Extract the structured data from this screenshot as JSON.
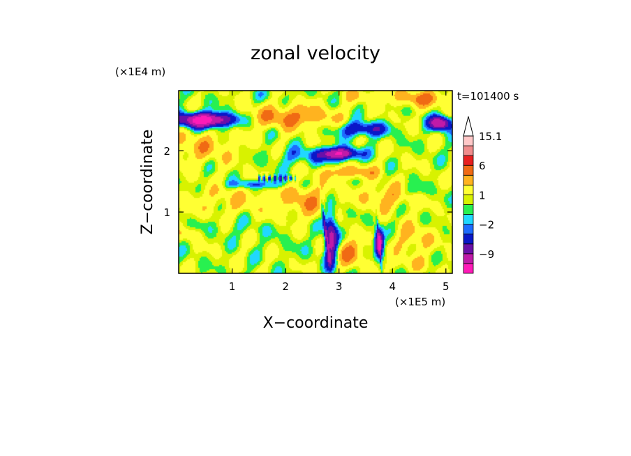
{
  "chart_data": {
    "type": "heatmap",
    "title": "zonal velocity",
    "xlabel": "X−coordinate",
    "ylabel": "Z−coordinate",
    "x_unit": "(×1E5 m)",
    "y_unit": "(×1E4 m)",
    "time_label": "t=101400 s",
    "xlim": [
      0,
      5.12
    ],
    "ylim": [
      0,
      2.98
    ],
    "x_ticks": [
      1,
      2,
      3,
      4,
      5
    ],
    "x_tick_labels": [
      "1",
      "2",
      "3",
      "4",
      "5"
    ],
    "y_ticks": [
      1,
      2
    ],
    "y_tick_labels": [
      "1",
      "2"
    ],
    "colorbar": {
      "levels": [
        -12,
        -9,
        -6,
        -4,
        -2,
        -1,
        0,
        1,
        2,
        4,
        6,
        9,
        12,
        15.1
      ],
      "labels": [
        {
          "value": 15.1,
          "text": "15.1"
        },
        {
          "value": 6,
          "text": "6"
        },
        {
          "value": 1,
          "text": "1"
        },
        {
          "value": -2,
          "text": "−2"
        },
        {
          "value": -9,
          "text": "−9"
        }
      ],
      "colors": [
        "#ff1ab8",
        "#c01aa8",
        "#6a10a8",
        "#0a18c8",
        "#1e6cff",
        "#20d8ff",
        "#28f050",
        "#d8f200",
        "#ffff33",
        "#ffb31f",
        "#f06a14",
        "#e82020",
        "#f08c8c",
        "#ffc8c8"
      ],
      "extend": "max"
    },
    "field_components": [
      {
        "x": 0.5,
        "z": 2.5,
        "sx": 0.55,
        "sz": 0.12,
        "amp": -13
      },
      {
        "x": 2.1,
        "z": 2.55,
        "sx": 0.8,
        "sz": 0.18,
        "amp": 5
      },
      {
        "x": 3.0,
        "z": 1.95,
        "sx": 0.35,
        "sz": 0.1,
        "amp": -11
      },
      {
        "x": 3.45,
        "z": 2.35,
        "sx": 0.45,
        "sz": 0.12,
        "amp": -6
      },
      {
        "x": 4.6,
        "z": 2.85,
        "sx": 0.6,
        "sz": 0.13,
        "amp": 4.5
      },
      {
        "x": 4.9,
        "z": 2.45,
        "sx": 0.2,
        "sz": 0.12,
        "amp": -11
      },
      {
        "x": 0.4,
        "z": 2.05,
        "sx": 0.7,
        "sz": 0.25,
        "amp": 3
      },
      {
        "x": 3.2,
        "z": 1.65,
        "sx": 0.5,
        "sz": 0.1,
        "amp": 4.5
      },
      {
        "x": 2.3,
        "z": 1.9,
        "sx": 0.55,
        "sz": 0.15,
        "amp": -2.5
      },
      {
        "x": 1.5,
        "z": 1.45,
        "sx": 0.6,
        "sz": 0.07,
        "amp": -4
      },
      {
        "x": 1.0,
        "z": 1.2,
        "sx": 1.0,
        "sz": 0.25,
        "amp": 2
      },
      {
        "x": 2.4,
        "z": 1.2,
        "sx": 0.45,
        "sz": 0.3,
        "amp": 3.5
      },
      {
        "x": 3.9,
        "z": 1.25,
        "sx": 0.5,
        "sz": 0.2,
        "amp": 3.5
      },
      {
        "x": 4.4,
        "z": 1.35,
        "sx": 0.3,
        "sz": 0.1,
        "amp": -2
      },
      {
        "x": 1.0,
        "z": 0.75,
        "sx": 1.1,
        "sz": 0.15,
        "amp": -0.8
      },
      {
        "x": 2.85,
        "z": 0.55,
        "sx": 0.12,
        "sz": 0.45,
        "amp": -9
      },
      {
        "x": 3.75,
        "z": 0.5,
        "sx": 0.08,
        "sz": 0.2,
        "amp": -12
      },
      {
        "x": 3.2,
        "z": 0.35,
        "sx": 0.25,
        "sz": 0.2,
        "amp": 5
      },
      {
        "x": 4.4,
        "z": 0.55,
        "sx": 0.35,
        "sz": 0.25,
        "amp": 3
      },
      {
        "x": 2.1,
        "z": 0.4,
        "sx": 0.5,
        "sz": 0.2,
        "amp": -0.5
      },
      {
        "x": 4.3,
        "z": 0.15,
        "sx": 0.6,
        "sz": 0.12,
        "amp": 1.5
      },
      {
        "x": 0.2,
        "z": 0.65,
        "sx": 0.25,
        "sz": 0.1,
        "amp": 2
      },
      {
        "x": 1.9,
        "z": 2.9,
        "sx": 0.6,
        "sz": 0.08,
        "amp": -0.6
      },
      {
        "x": 3.5,
        "z": 2.9,
        "sx": 0.5,
        "sz": 0.1,
        "amp": 2
      }
    ],
    "background_value": 1.6,
    "wave_band": {
      "x_from": 1.5,
      "x_to": 2.2,
      "z": 1.55,
      "amplitude": -6,
      "wavelength": 0.1
    }
  }
}
